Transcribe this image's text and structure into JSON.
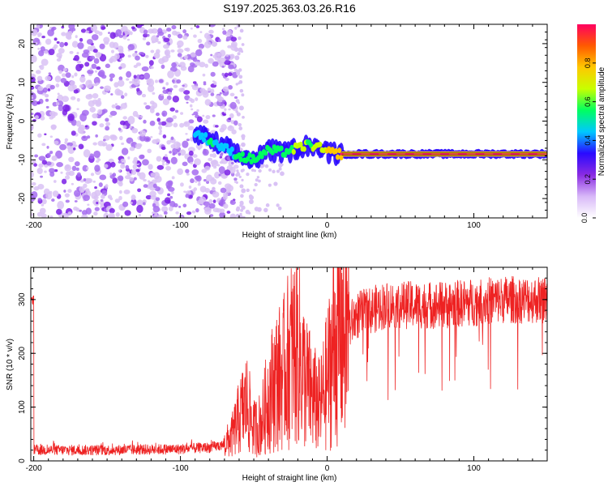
{
  "title": "S197.2025.363.03.26.R16",
  "chart_data": [
    {
      "type": "heatmap",
      "xlabel": "Height of straight line (km)",
      "ylabel": "Frequency (Hz)",
      "xlim": [
        -202,
        150
      ],
      "ylim": [
        -25,
        25
      ],
      "xticks": [
        -200,
        -100,
        0,
        100
      ],
      "yticks": [
        -20,
        -10,
        0,
        10,
        20
      ],
      "colorbar": {
        "label": "Normalized spectral amplitude",
        "range": [
          0,
          1
        ],
        "ticks": [
          "0.0",
          "0.2",
          "0.4",
          "0.6",
          "0.8"
        ],
        "colors": [
          "#ffffff",
          "#d8b8f8",
          "#8a2be2",
          "#2a0aff",
          "#00c8ff",
          "#00ff60",
          "#c8ff00",
          "#ffc800",
          "#ff5a00",
          "#ff0060"
        ]
      },
      "signal_track": [
        {
          "x": -90,
          "y": -3,
          "amp": 0.35
        },
        {
          "x": -80,
          "y": -5,
          "amp": 0.45
        },
        {
          "x": -70,
          "y": -7,
          "amp": 0.4
        },
        {
          "x": -60,
          "y": -9,
          "amp": 0.45
        },
        {
          "x": -50,
          "y": -10,
          "amp": 0.5
        },
        {
          "x": -40,
          "y": -7.5,
          "amp": 0.55
        },
        {
          "x": -30,
          "y": -8,
          "amp": 0.5
        },
        {
          "x": -20,
          "y": -7,
          "amp": 0.6
        },
        {
          "x": -12,
          "y": -6,
          "amp": 0.55
        },
        {
          "x": -5,
          "y": -7,
          "amp": 0.6
        },
        {
          "x": 0,
          "y": -8,
          "amp": 0.7
        },
        {
          "x": 10,
          "y": -8.5,
          "amp": 0.85
        },
        {
          "x": 40,
          "y": -8.5,
          "amp": 0.95
        },
        {
          "x": 80,
          "y": -8.5,
          "amp": 0.95
        },
        {
          "x": 120,
          "y": -8.5,
          "amp": 0.95
        },
        {
          "x": 150,
          "y": -8.5,
          "amp": 0.95
        }
      ]
    },
    {
      "type": "line",
      "xlabel": "Height of straight line (km)",
      "ylabel": "SNR (10 * v/v)",
      "xlim": [
        -202,
        150
      ],
      "ylim": [
        0,
        360
      ],
      "xticks": [
        -200,
        -100,
        0,
        100
      ],
      "yticks": [
        0,
        100,
        200,
        300
      ],
      "color": "#ee2222",
      "series": [
        {
          "x": [
            -200,
            -150,
            -100,
            -80,
            -70,
            -65,
            -60,
            -55,
            -50,
            -45,
            -40,
            -35,
            -30,
            -25,
            -20,
            -15,
            -10,
            -5,
            0,
            5,
            10,
            15,
            20,
            30,
            40,
            50,
            60,
            80,
            100,
            120,
            140,
            150
          ],
          "y": [
            20,
            20,
            22,
            25,
            30,
            45,
            80,
            110,
            60,
            70,
            120,
            150,
            160,
            200,
            210,
            150,
            120,
            100,
            150,
            220,
            240,
            250,
            270,
            280,
            290,
            290,
            290,
            290,
            295,
            300,
            300,
            300
          ]
        }
      ]
    }
  ]
}
